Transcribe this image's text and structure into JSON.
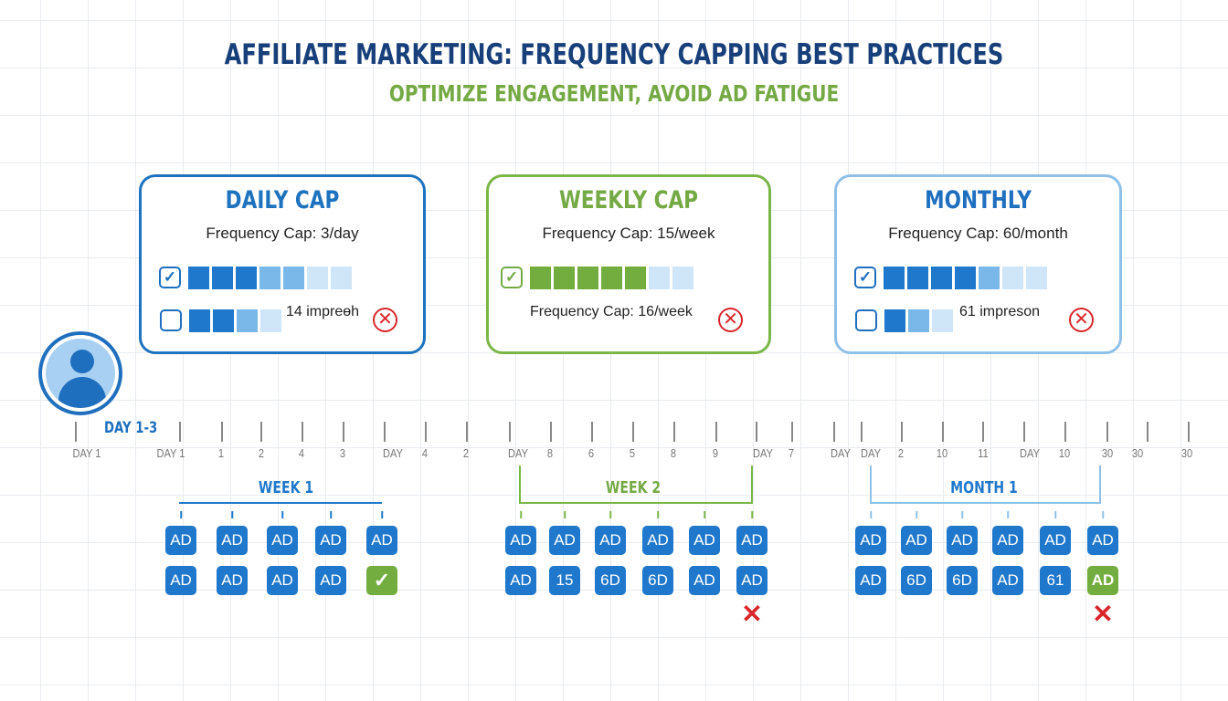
{
  "header": {
    "title": "AFFILIATE MARKETING: FREQUENCY CAPPING BEST PRACTICES",
    "subtitle": "OPTIMIZE ENGAGEMENT, AVOID AD FATIGUE"
  },
  "colors": {
    "navy": "#173f7a",
    "blue": "#1f78cc",
    "green": "#74a944",
    "light_blue": "#8fc1e8",
    "red": "#d9262b"
  },
  "cards": [
    {
      "title": "DAILY CAP",
      "cap": "Frequency Cap: 3/day",
      "row1_checked": true,
      "row1": [
        "dark",
        "dark",
        "dark",
        "med",
        "med",
        "light",
        "light"
      ],
      "row2_checked": false,
      "row2": [
        "dark",
        "dark",
        "med",
        "light"
      ],
      "row2_text": "14 impreɵh",
      "status_icon": "x-circle-icon"
    },
    {
      "title": "WEEKLY CAP",
      "cap": "Frequency Cap: 15/week",
      "row1_checked": true,
      "row1": [
        "green",
        "green",
        "green",
        "green",
        "green",
        "light",
        "light"
      ],
      "row2_text": "Frequency Cap: 16/week",
      "status_icon": "x-circle-icon"
    },
    {
      "title": "MONTHLY",
      "cap": "Frequency Cap: 60/month",
      "row1_checked": true,
      "row1": [
        "dark",
        "dark",
        "dark",
        "dark",
        "med",
        "light",
        "light"
      ],
      "row2_checked": false,
      "row2": [
        "dark",
        "med",
        "light"
      ],
      "row2_text": "61 impreson",
      "status_icon": "x-circle-icon"
    }
  ],
  "avatar": {
    "icon": "user-icon"
  },
  "timeline": {
    "marker": "DAY 1-3",
    "labels": [
      "DAY 1",
      "DAY 1",
      "1",
      "2",
      "4",
      "3",
      "DAY",
      "4",
      "2",
      "DAY",
      "8",
      "6",
      "5",
      "8",
      "9",
      "DAY",
      "7",
      "DAY",
      "DAY",
      "2",
      "10",
      "11",
      "DAY",
      "10",
      "30",
      "30",
      "30"
    ]
  },
  "groups": [
    {
      "label": "WEEK 1",
      "row1": [
        "AD",
        "AD",
        "AD",
        "AD",
        "AD"
      ],
      "row2": [
        "AD",
        "AD",
        "AD",
        "AD",
        "✓"
      ],
      "row2_status": [
        "",
        "",
        "",
        "",
        "ok"
      ],
      "rejected": []
    },
    {
      "label": "WEEK 2",
      "row1": [
        "AD",
        "AD",
        "AD",
        "AD",
        "AD",
        "AD"
      ],
      "row2": [
        "AD",
        "15",
        "6D",
        "6D",
        "AD",
        "AD"
      ],
      "row2_status": [
        "",
        "",
        "",
        "",
        "",
        ""
      ],
      "rejected": [
        5
      ]
    },
    {
      "label": "MONTH 1",
      "row1": [
        "AD",
        "AD",
        "AD",
        "AD",
        "AD",
        "AD"
      ],
      "row2": [
        "AD",
        "6D",
        "6D",
        "AD",
        "61",
        "AD"
      ],
      "row2_status": [
        "",
        "",
        "",
        "",
        "",
        "ok"
      ],
      "rejected": [
        5
      ]
    }
  ]
}
